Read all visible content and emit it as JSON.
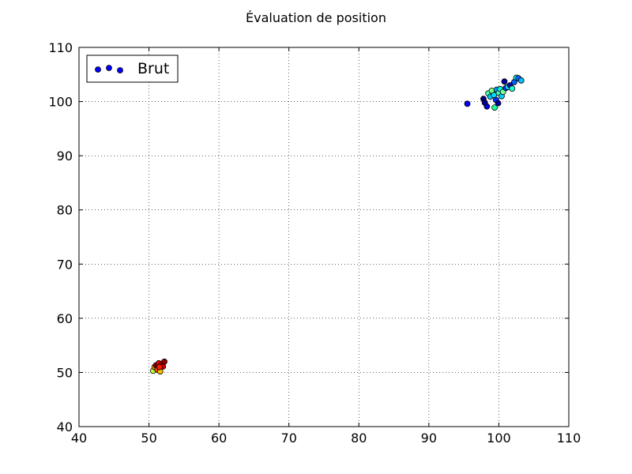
{
  "chart_data": {
    "type": "scatter",
    "title": "Évaluation de position",
    "xlabel": "",
    "ylabel": "",
    "xlim": [
      40,
      110
    ],
    "ylim": [
      40,
      110
    ],
    "x_ticks": [
      40,
      50,
      60,
      70,
      80,
      90,
      100,
      110
    ],
    "y_ticks": [
      40,
      50,
      60,
      70,
      80,
      90,
      100,
      110
    ],
    "x_tick_labels": [
      "40",
      "50",
      "60",
      "70",
      "80",
      "90",
      "100",
      "110"
    ],
    "y_tick_labels": [
      "40",
      "50",
      "60",
      "70",
      "80",
      "90",
      "100",
      "110"
    ],
    "grid": true,
    "legend_position": "top-left",
    "legend": {
      "label": "Brut",
      "marker_color": "#0000ff"
    },
    "series": [
      {
        "name": "Brut",
        "points": [
          {
            "x": 95.5,
            "y": 99.6,
            "color": "#0000ff"
          },
          {
            "x": 97.8,
            "y": 100.5,
            "color": "#000080"
          },
          {
            "x": 98.0,
            "y": 99.8,
            "color": "#000090"
          },
          {
            "x": 98.3,
            "y": 99.1,
            "color": "#0000cd"
          },
          {
            "x": 98.5,
            "y": 101.5,
            "color": "#4dffb0"
          },
          {
            "x": 98.8,
            "y": 100.9,
            "color": "#00c8ff"
          },
          {
            "x": 99.0,
            "y": 102.0,
            "color": "#80ff80"
          },
          {
            "x": 99.3,
            "y": 101.2,
            "color": "#00e0ff"
          },
          {
            "x": 99.4,
            "y": 98.9,
            "color": "#1aff9e"
          },
          {
            "x": 99.6,
            "y": 100.3,
            "color": "#0030ff"
          },
          {
            "x": 99.7,
            "y": 102.2,
            "color": "#00a0ff"
          },
          {
            "x": 99.9,
            "y": 99.7,
            "color": "#000099"
          },
          {
            "x": 100.0,
            "y": 101.6,
            "color": "#40ffc0"
          },
          {
            "x": 100.2,
            "y": 102.3,
            "color": "#00ffe0"
          },
          {
            "x": 100.4,
            "y": 101.0,
            "color": "#00d0ff"
          },
          {
            "x": 100.6,
            "y": 101.8,
            "color": "#80ffa0"
          },
          {
            "x": 100.8,
            "y": 103.7,
            "color": "#0000a0"
          },
          {
            "x": 101.0,
            "y": 102.5,
            "color": "#0040ff"
          },
          {
            "x": 101.3,
            "y": 102.7,
            "color": "#00f0ff"
          },
          {
            "x": 101.6,
            "y": 103.0,
            "color": "#0010a0"
          },
          {
            "x": 101.9,
            "y": 102.4,
            "color": "#20ffd0"
          },
          {
            "x": 102.2,
            "y": 103.6,
            "color": "#0060ff"
          },
          {
            "x": 102.5,
            "y": 104.4,
            "color": "#00ffd0"
          },
          {
            "x": 102.8,
            "y": 104.3,
            "color": "#1060ff"
          },
          {
            "x": 103.2,
            "y": 103.9,
            "color": "#00c0ff"
          },
          {
            "x": 50.6,
            "y": 50.3,
            "color": "#c0ff30"
          },
          {
            "x": 50.8,
            "y": 51.0,
            "color": "#ffa000"
          },
          {
            "x": 51.0,
            "y": 51.3,
            "color": "#800000"
          },
          {
            "x": 51.2,
            "y": 50.5,
            "color": "#ff4000"
          },
          {
            "x": 51.4,
            "y": 51.7,
            "color": "#ff0000"
          },
          {
            "x": 51.6,
            "y": 50.2,
            "color": "#ffc000"
          },
          {
            "x": 51.8,
            "y": 51.5,
            "color": "#b00000"
          },
          {
            "x": 52.0,
            "y": 51.1,
            "color": "#d00000"
          },
          {
            "x": 52.2,
            "y": 52.0,
            "color": "#900000"
          },
          {
            "x": 51.5,
            "y": 51.0,
            "color": "#ff2000"
          }
        ]
      }
    ]
  }
}
